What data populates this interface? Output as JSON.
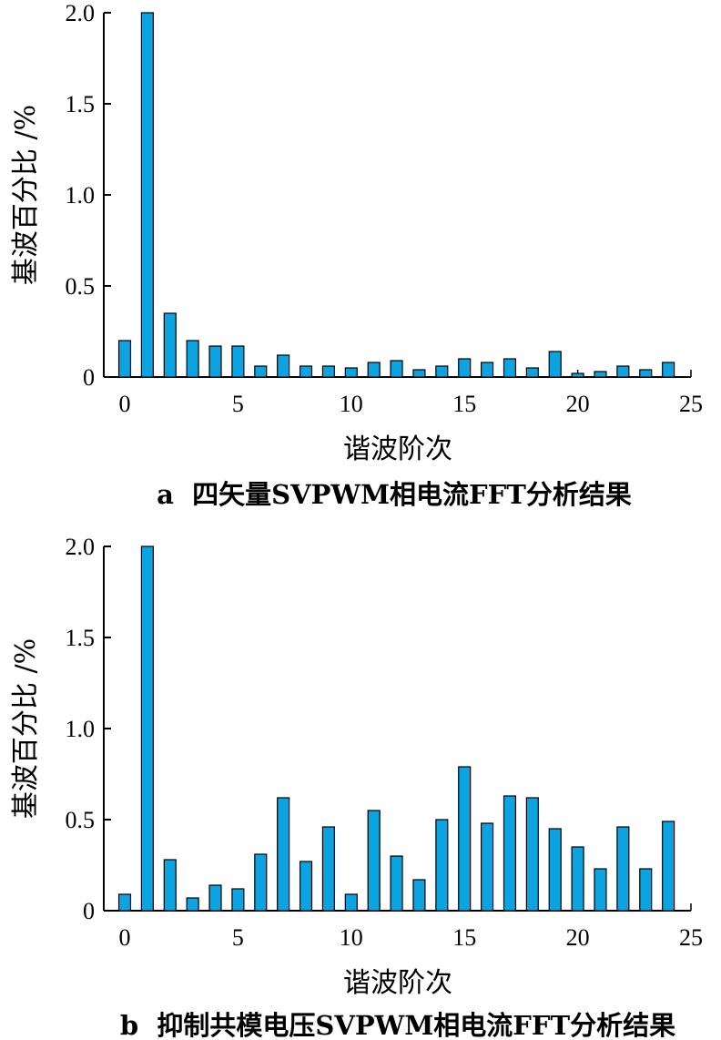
{
  "chart_data": [
    {
      "type": "bar",
      "caption": "a  四矢量SVPWM相电流FFT分析结果",
      "xlabel": "谐波阶次",
      "ylabel": "基波百分比 /%",
      "xlim": [
        -1,
        25
      ],
      "ylim": [
        0,
        2.0
      ],
      "xticks": [
        0,
        5,
        10,
        15,
        20,
        25
      ],
      "yticks": [
        0,
        0.5,
        1.0,
        1.5,
        2.0
      ],
      "ytick_labels": [
        "0",
        "0.5",
        "1.0",
        "1.5",
        "2.0"
      ],
      "bar_color": "#0BA3E0",
      "x": [
        0,
        1,
        2,
        3,
        4,
        5,
        6,
        7,
        8,
        9,
        10,
        11,
        12,
        13,
        14,
        15,
        16,
        17,
        18,
        19,
        20,
        21,
        22,
        23,
        24
      ],
      "values": [
        0.2,
        2.0,
        0.35,
        0.2,
        0.17,
        0.17,
        0.06,
        0.12,
        0.06,
        0.06,
        0.05,
        0.08,
        0.09,
        0.04,
        0.06,
        0.1,
        0.08,
        0.1,
        0.05,
        0.14,
        0.02,
        0.03,
        0.06,
        0.04,
        0.08
      ]
    },
    {
      "type": "bar",
      "caption": "b  抑制共模电压SVPWM相电流FFT分析结果",
      "xlabel": "谐波阶次",
      "ylabel": "基波百分比 /%",
      "xlim": [
        -1,
        25
      ],
      "ylim": [
        0,
        2.0
      ],
      "xticks": [
        0,
        5,
        10,
        15,
        20,
        25
      ],
      "yticks": [
        0,
        0.5,
        1.0,
        1.5,
        2.0
      ],
      "ytick_labels": [
        "0",
        "0.5",
        "1.0",
        "1.5",
        "2.0"
      ],
      "bar_color": "#0BA3E0",
      "x": [
        0,
        1,
        2,
        3,
        4,
        5,
        6,
        7,
        8,
        9,
        10,
        11,
        12,
        13,
        14,
        15,
        16,
        17,
        18,
        19,
        20,
        21,
        22,
        23,
        24
      ],
      "values": [
        0.09,
        2.0,
        0.28,
        0.07,
        0.14,
        0.12,
        0.31,
        0.62,
        0.27,
        0.46,
        0.09,
        0.55,
        0.3,
        0.17,
        0.5,
        0.79,
        0.48,
        0.63,
        0.62,
        0.45,
        0.35,
        0.23,
        0.46,
        0.23,
        0.49
      ]
    }
  ]
}
